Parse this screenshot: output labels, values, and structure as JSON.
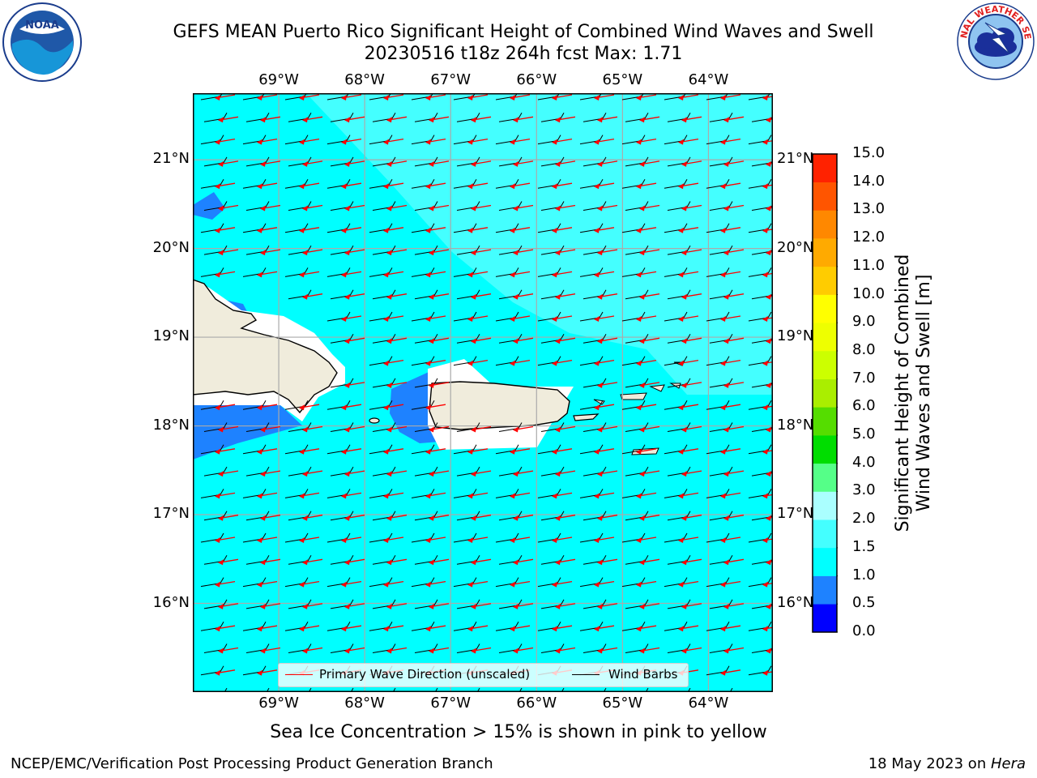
{
  "header": {
    "title_line1": "GEFS MEAN Puerto Rico Significant Height of Combined Wind Waves and Swell",
    "title_line2": "20230516 t18z 264h fcst   Max: 1.71"
  },
  "logos": {
    "noaa": {
      "text": "NOAA",
      "icon": "noaa-logo-icon"
    },
    "nws": {
      "text": "NATIONAL WEATHER SERVICE",
      "icon": "nws-logo-icon"
    }
  },
  "map": {
    "lon_labels": [
      "69°W",
      "68°W",
      "67°W",
      "66°W",
      "65°W",
      "64°W"
    ],
    "lat_labels": [
      "21°N",
      "20°N",
      "19°N",
      "18°N",
      "17°N",
      "16°N"
    ],
    "lon_values": [
      -69,
      -68,
      -67,
      -66,
      -65,
      -64
    ],
    "lat_values": [
      21,
      20,
      19,
      18,
      17,
      16
    ],
    "lon_range": [
      -70,
      -63.25
    ],
    "lat_range": [
      15,
      21.75
    ],
    "colors": {
      "sea_main": "#00ffff",
      "sea_light": "#44ffff",
      "shallow": "#1e82ff",
      "land": "#f0ecdc",
      "wave_arrow": "#ff0000",
      "wind_barb": "#000000",
      "grid": "#aaaaaa"
    }
  },
  "legend": {
    "wave_direction": "Primary Wave Direction (unscaled)",
    "wind_barbs": "Wind Barbs"
  },
  "colorbar": {
    "title_line1": "Significant Height of Combined",
    "title_line2": "Wind Waves and Swell [m]",
    "ticks": [
      "0.0",
      "0.5",
      "1.0",
      "1.5",
      "2.0",
      "3.0",
      "4.0",
      "5.0",
      "6.0",
      "7.0",
      "8.0",
      "9.0",
      "10.0",
      "11.0",
      "12.0",
      "13.0",
      "14.0",
      "15.0"
    ],
    "colors": [
      "#0000ff",
      "#1e82ff",
      "#00ffff",
      "#44ffff",
      "#aaffff",
      "#55ff88",
      "#00dd00",
      "#55dd00",
      "#aaee00",
      "#ccff00",
      "#eeff00",
      "#ffff00",
      "#ffcc00",
      "#ffaa00",
      "#ff8800",
      "#ff5500",
      "#ff2200"
    ]
  },
  "footer": {
    "sea_ice_note": "Sea Ice Concentration > 15% is shown in pink to yellow",
    "branch": "NCEP/EMC/Verification Post Processing Product Generation Branch",
    "date_prefix": "18 May 2023 on ",
    "host": "Hera"
  }
}
